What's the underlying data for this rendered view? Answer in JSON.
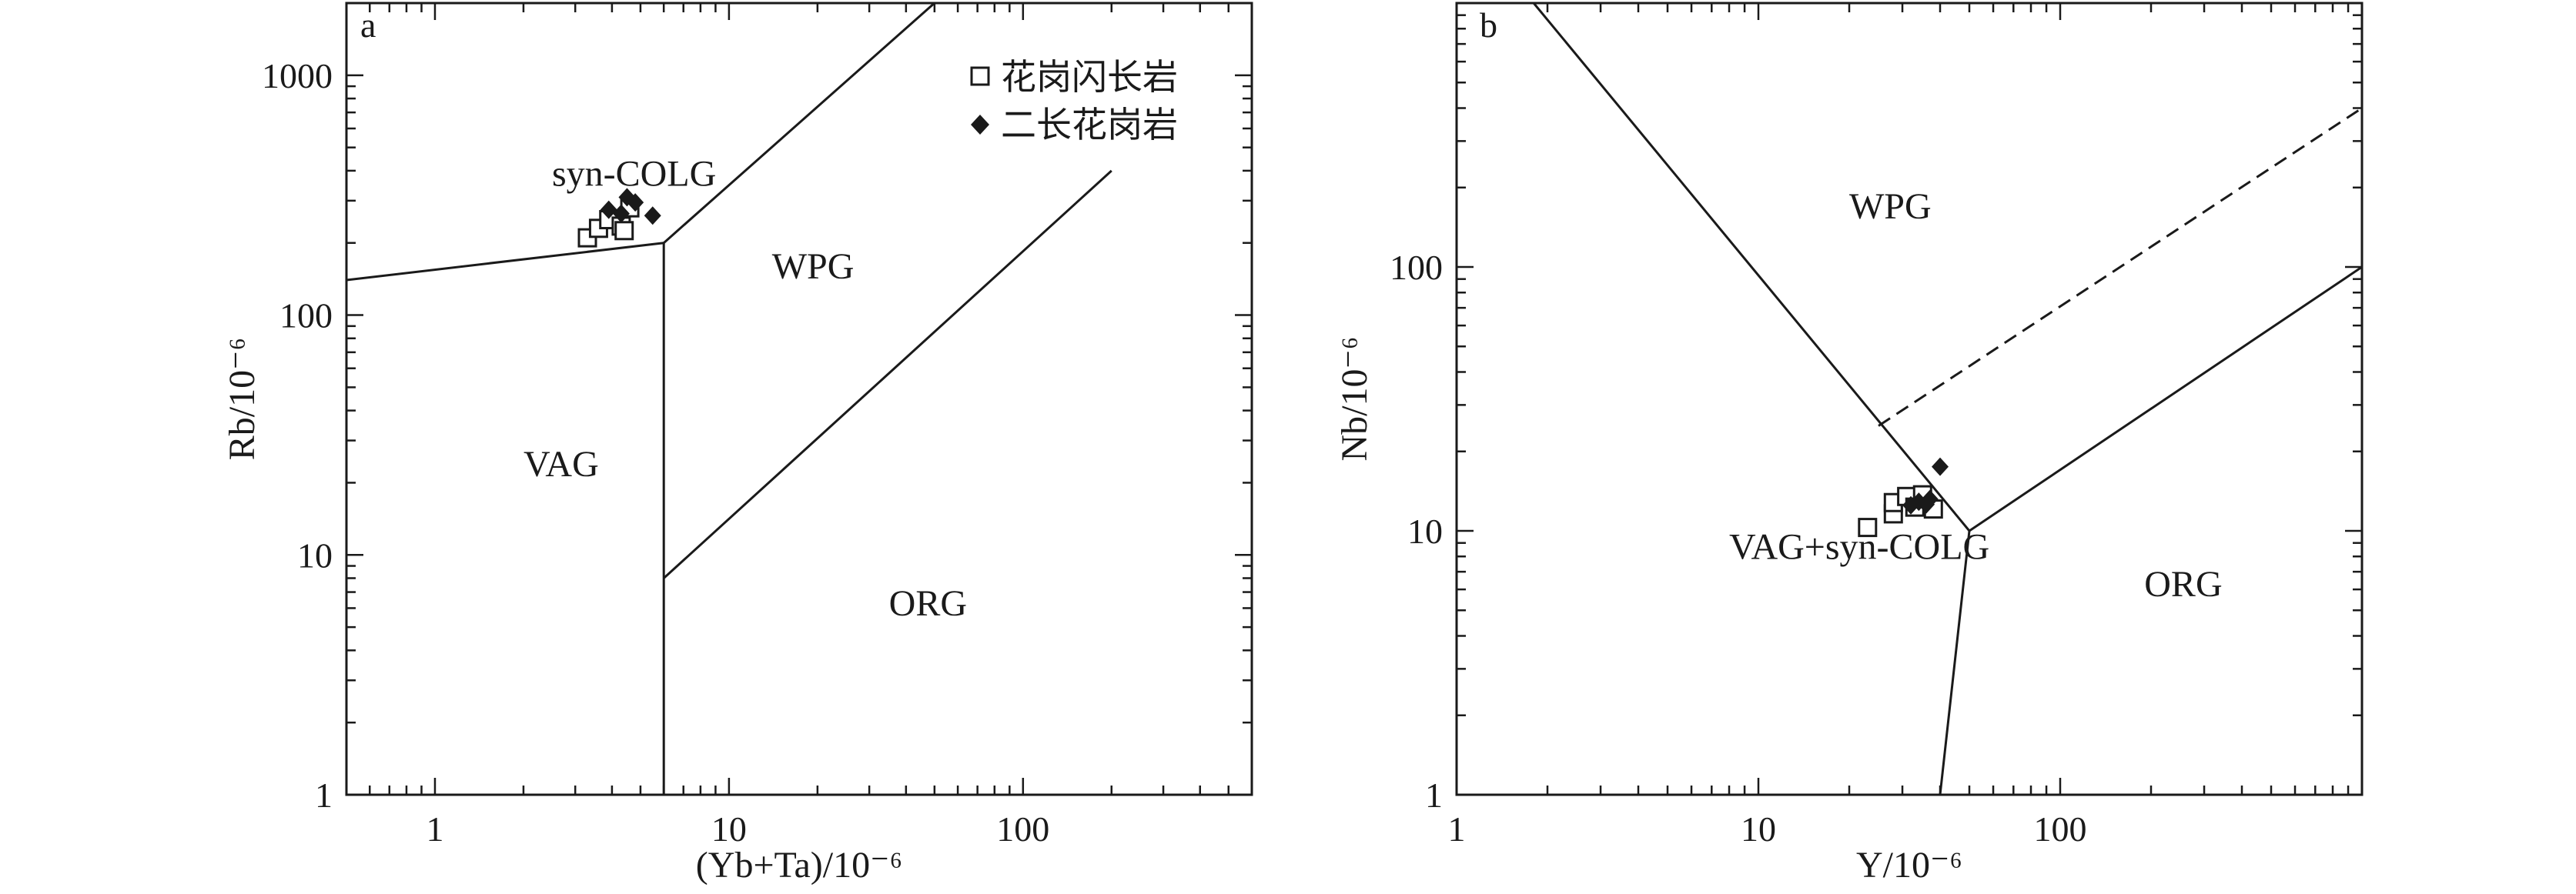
{
  "chart_data": [
    {
      "type": "scatter",
      "panel": "a",
      "xlabel": "(Yb+Ta)/10⁻⁶",
      "ylabel": "Rb/10⁻⁶",
      "xscale": "log",
      "yscale": "log",
      "xlim": [
        0.5,
        600
      ],
      "ylim": [
        1,
        2000
      ],
      "x_ticks": [
        {
          "value": 1,
          "label": "1"
        },
        {
          "value": 10,
          "label": "10"
        },
        {
          "value": 100,
          "label": "100"
        }
      ],
      "y_ticks": [
        {
          "value": 1,
          "label": "1"
        },
        {
          "value": 10,
          "label": "10"
        },
        {
          "value": 100,
          "label": "100"
        },
        {
          "value": 1000,
          "label": "1000"
        }
      ],
      "fields": [
        {
          "label": "syn-COLG",
          "x": 2.5,
          "y": 390
        },
        {
          "label": "WPG",
          "x": 14,
          "y": 160
        },
        {
          "label": "VAG",
          "x": 2.0,
          "y": 24
        },
        {
          "label": "ORG",
          "x": 35,
          "y": 6.3
        }
      ],
      "boundaries": [
        {
          "style": "solid",
          "points": [
            [
              0.5,
              140
            ],
            [
              6,
              200
            ]
          ]
        },
        {
          "style": "solid",
          "points": [
            [
              6,
              200
            ],
            [
              50,
              2000
            ]
          ]
        },
        {
          "style": "solid",
          "points": [
            [
              6,
              200
            ],
            [
              6,
              1
            ]
          ]
        },
        {
          "style": "solid",
          "points": [
            [
              6,
              8
            ],
            [
              200,
              400
            ]
          ]
        }
      ],
      "legend": {
        "position": "top-right",
        "entries": [
          {
            "name": "花岗闪长岩",
            "marker": "open-square"
          },
          {
            "name": "二长花岗岩",
            "marker": "filled-diamond"
          }
        ]
      },
      "series": [
        {
          "name": "花岗闪长岩",
          "marker": "open-square",
          "points": [
            {
              "x": 3.3,
              "y": 210
            },
            {
              "x": 3.6,
              "y": 230
            },
            {
              "x": 3.9,
              "y": 250
            },
            {
              "x": 4.3,
              "y": 235
            },
            {
              "x": 4.4,
              "y": 225
            },
            {
              "x": 4.6,
              "y": 280
            }
          ]
        },
        {
          "name": "二长花岗岩",
          "marker": "filled-diamond",
          "points": [
            {
              "x": 3.9,
              "y": 275
            },
            {
              "x": 4.3,
              "y": 265
            },
            {
              "x": 4.5,
              "y": 310
            },
            {
              "x": 4.8,
              "y": 295
            },
            {
              "x": 5.5,
              "y": 260
            }
          ]
        }
      ]
    },
    {
      "type": "scatter",
      "panel": "b",
      "xlabel": "Y/10⁻⁶",
      "ylabel": "Nb/10⁻⁶",
      "xscale": "log",
      "yscale": "log",
      "xlim": [
        1,
        1000
      ],
      "ylim": [
        1,
        1000
      ],
      "x_ticks": [
        {
          "value": 1,
          "label": "1"
        },
        {
          "value": 10,
          "label": "10"
        },
        {
          "value": 100,
          "label": "100"
        }
      ],
      "y_ticks": [
        {
          "value": 1,
          "label": "1"
        },
        {
          "value": 10,
          "label": "10"
        },
        {
          "value": 100,
          "label": "100"
        }
      ],
      "fields": [
        {
          "label": "WPG",
          "x": 20,
          "y": 170
        },
        {
          "label": "VAG+syn-COLG",
          "x": 8,
          "y": 8.7
        },
        {
          "label": "ORG",
          "x": 190,
          "y": 6.3
        }
      ],
      "boundaries": [
        {
          "style": "solid",
          "points": [
            [
              1.8,
              1000
            ],
            [
              50,
              10
            ]
          ]
        },
        {
          "style": "solid",
          "points": [
            [
              50,
              10
            ],
            [
              40,
              1
            ]
          ]
        },
        {
          "style": "solid",
          "points": [
            [
              50,
              10
            ],
            [
              1000,
              100
            ]
          ]
        },
        {
          "style": "dashed",
          "points": [
            [
              25,
              25
            ],
            [
              1000,
              400
            ]
          ]
        }
      ],
      "series": [
        {
          "name": "花岗闪长岩",
          "marker": "open-square",
          "points": [
            {
              "x": 23,
              "y": 10.3
            },
            {
              "x": 28,
              "y": 11.6
            },
            {
              "x": 28,
              "y": 12.8
            },
            {
              "x": 31,
              "y": 13.5
            },
            {
              "x": 33,
              "y": 12.3
            },
            {
              "x": 35,
              "y": 13.7
            },
            {
              "x": 38,
              "y": 12.1
            }
          ]
        },
        {
          "name": "二长花岗岩",
          "marker": "filled-diamond",
          "points": [
            {
              "x": 32,
              "y": 12.5
            },
            {
              "x": 34,
              "y": 12.9
            },
            {
              "x": 36,
              "y": 12.6
            },
            {
              "x": 37,
              "y": 13.2
            },
            {
              "x": 40,
              "y": 17.5
            }
          ]
        }
      ]
    }
  ]
}
